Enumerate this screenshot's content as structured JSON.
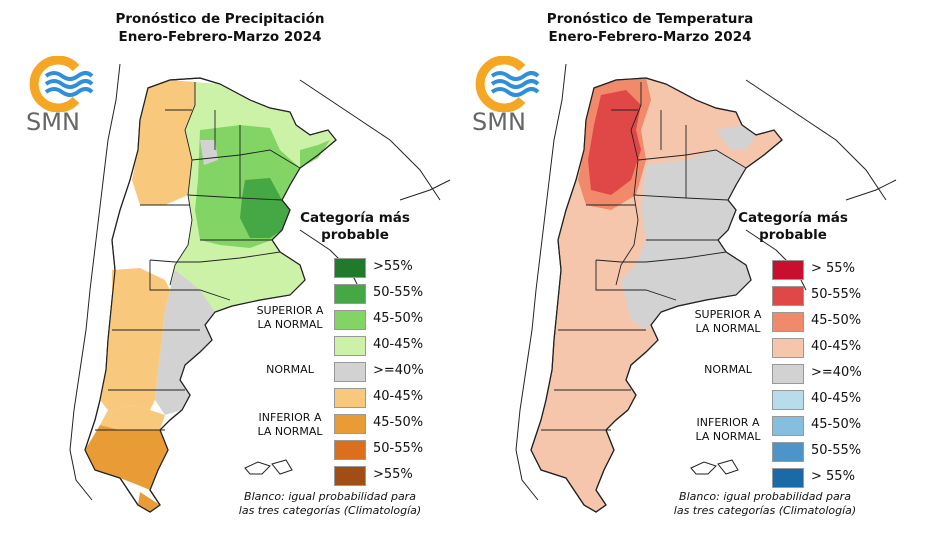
{
  "maps": [
    {
      "id": "precip",
      "title_line1": "Pronóstico de Precipitación",
      "title_line2": "Enero-Febrero-Marzo 2024",
      "logo_text": "SMN",
      "legend_title_line1": "Categoría más",
      "legend_title_line2": "probable",
      "group_superior_line1": "SUPERIOR A",
      "group_superior_line2": "LA NORMAL",
      "group_normal": "NORMAL",
      "group_inferior_line1": "INFERIOR A",
      "group_inferior_line2": "LA NORMAL",
      "legend": [
        {
          "label": ">55%",
          "color": "#1f7a2c"
        },
        {
          "label": "50-55%",
          "color": "#45a845"
        },
        {
          "label": "45-50%",
          "color": "#82d564"
        },
        {
          "label": "40-45%",
          "color": "#ccf2a8"
        },
        {
          "label": ">=40%",
          "color": "#d2d2d2"
        },
        {
          "label": "40-45%",
          "color": "#f8c87c"
        },
        {
          "label": "45-50%",
          "color": "#e99c36"
        },
        {
          "label": "50-55%",
          "color": "#dc6f1c"
        },
        {
          "label": ">55%",
          "color": "#a14d16"
        }
      ],
      "footnote_line1": "Blanco: igual probabilidad para",
      "footnote_line2": "las tres categorías (Climatología)"
    },
    {
      "id": "temp",
      "title_line1": "Pronóstico de Temperatura",
      "title_line2": "Enero-Febrero-Marzo 2024",
      "logo_text": "SMN",
      "legend_title_line1": "Categoría más",
      "legend_title_line2": "probable",
      "group_superior_line1": "SUPERIOR A",
      "group_superior_line2": "LA NORMAL",
      "group_normal": "NORMAL",
      "group_inferior_line1": "INFERIOR A",
      "group_inferior_line2": "LA NORMAL",
      "legend": [
        {
          "label": "> 55%",
          "color": "#c8102e"
        },
        {
          "label": "50-55%",
          "color": "#e04848"
        },
        {
          "label": "45-50%",
          "color": "#f08a6a"
        },
        {
          "label": "40-45%",
          "color": "#f5c6ac"
        },
        {
          "label": ">=40%",
          "color": "#d2d2d2"
        },
        {
          "label": "40-45%",
          "color": "#b7dcec"
        },
        {
          "label": "45-50%",
          "color": "#85bedf"
        },
        {
          "label": "50-55%",
          "color": "#4d94c8"
        },
        {
          "label": "> 55%",
          "color": "#1a6aa8"
        }
      ],
      "footnote_line1": "Blanco: igual probabilidad para",
      "footnote_line2": "las tres categorías (Climatología)"
    }
  ],
  "colors": {
    "logo_orange": "#f5a623",
    "logo_blue": "#2f8fd8",
    "border": "#222222",
    "water": "#ffffff"
  }
}
